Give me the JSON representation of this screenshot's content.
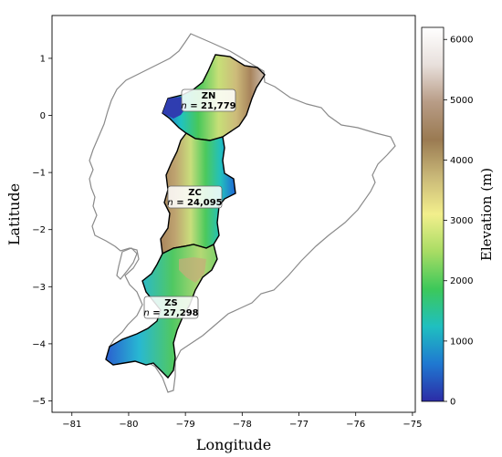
{
  "figure": {
    "xlabel": "Longitude",
    "ylabel": "Latitude",
    "colorbar_label": "Elevation (m)"
  },
  "axes": {
    "x_ticks": [
      "−81",
      "−80",
      "−79",
      "−78",
      "−77",
      "−76",
      "−75"
    ],
    "x_tick_values": [
      -81,
      -80,
      -79,
      -78,
      -77,
      -76,
      -75
    ],
    "y_ticks": [
      "1",
      "0",
      "−1",
      "−2",
      "−3",
      "−4",
      "−5"
    ],
    "y_tick_values": [
      1,
      0,
      -1,
      -2,
      -3,
      -4,
      -5
    ],
    "xlim": [
      -81.35,
      -74.95
    ],
    "ylim": [
      -5.2,
      1.75
    ]
  },
  "colorbar": {
    "ticks": [
      "0",
      "1000",
      "2000",
      "3000",
      "4000",
      "5000",
      "6000"
    ],
    "tick_values": [
      0,
      1000,
      2000,
      3000,
      4000,
      5000,
      6000
    ],
    "range": [
      0,
      6200
    ],
    "colormap_stops": [
      "#2c2ca6",
      "#1f78d1",
      "#1fbfc0",
      "#3cc85a",
      "#a8dc64",
      "#f2ef8c",
      "#c9b878",
      "#9a7a52",
      "#b89c86",
      "#e8e0dc",
      "#ffffff"
    ]
  },
  "zones": [
    {
      "name": "ZN",
      "n_prefix": "n",
      "n_value": "= 21,779"
    },
    {
      "name": "ZC",
      "n_prefix": "n",
      "n_value": "= 24,095"
    },
    {
      "name": "ZS",
      "n_prefix": "n",
      "n_value": "= 27,298"
    }
  ],
  "colors": {
    "country_outline": "#8a8a8a",
    "zone_outline": "#000000",
    "frame": "#000000"
  }
}
